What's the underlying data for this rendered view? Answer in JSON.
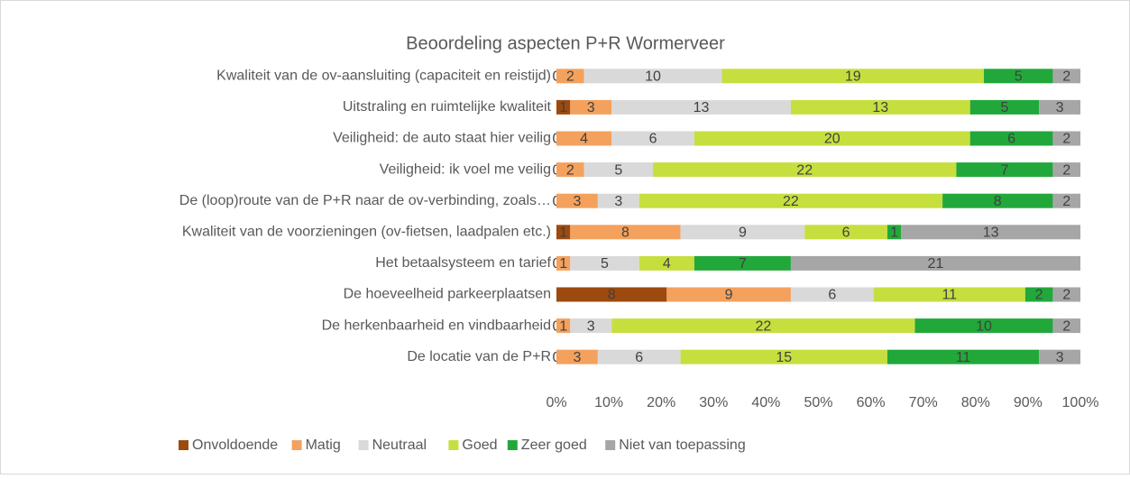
{
  "chart_data": {
    "type": "bar",
    "orientation": "horizontal",
    "stacking": "percent",
    "title": "Beoordeling aspecten P+R Wormerveer",
    "categories": [
      "Kwaliteit van de ov-aansluiting (capaciteit en reistijd)",
      "Uitstraling en ruimtelijke kwaliteit",
      "Veiligheid: de auto staat hier veilig",
      "Veiligheid: ik voel me veilig",
      "De (loop)route van de P+R naar de ov-verbinding, zoals…",
      "Kwaliteit van de voorzieningen (ov-fietsen, laadpalen etc.)",
      "Het betaalsysteem en tarief",
      "De hoeveelheid parkeerplaatsen",
      "De herkenbaarheid en vindbaarheid",
      "De locatie van de P+R"
    ],
    "series": [
      {
        "name": "Onvoldoende",
        "color": "#9c4a0e",
        "values": [
          0,
          1,
          0,
          0,
          0,
          1,
          0,
          8,
          0,
          0
        ]
      },
      {
        "name": "Matig",
        "color": "#f4a15d",
        "values": [
          2,
          3,
          4,
          2,
          3,
          8,
          1,
          9,
          1,
          3
        ]
      },
      {
        "name": "Neutraal",
        "color": "#d9d9d9",
        "values": [
          10,
          13,
          6,
          5,
          3,
          9,
          5,
          6,
          3,
          6
        ]
      },
      {
        "name": "Goed",
        "color": "#c6df3f",
        "values": [
          19,
          13,
          20,
          22,
          22,
          6,
          4,
          11,
          22,
          15
        ]
      },
      {
        "name": "Zeer goed",
        "color": "#22a83a",
        "values": [
          5,
          5,
          6,
          7,
          8,
          1,
          7,
          2,
          10,
          11
        ]
      },
      {
        "name": "Niet van toepassing",
        "color": "#a6a6a6",
        "values": [
          2,
          3,
          2,
          2,
          2,
          13,
          21,
          2,
          2,
          3
        ]
      }
    ],
    "xlim": [
      0,
      100
    ],
    "xticks": [
      {
        "value": 0,
        "label": "0%"
      },
      {
        "value": 10,
        "label": "10%"
      },
      {
        "value": 20,
        "label": "20%"
      },
      {
        "value": 30,
        "label": "30%"
      },
      {
        "value": 40,
        "label": "40%"
      },
      {
        "value": 50,
        "label": "50%"
      },
      {
        "value": 60,
        "label": "60%"
      },
      {
        "value": 70,
        "label": "70%"
      },
      {
        "value": 80,
        "label": "80%"
      },
      {
        "value": 90,
        "label": "90%"
      },
      {
        "value": 100,
        "label": "100%"
      }
    ],
    "legend": "bottom"
  }
}
